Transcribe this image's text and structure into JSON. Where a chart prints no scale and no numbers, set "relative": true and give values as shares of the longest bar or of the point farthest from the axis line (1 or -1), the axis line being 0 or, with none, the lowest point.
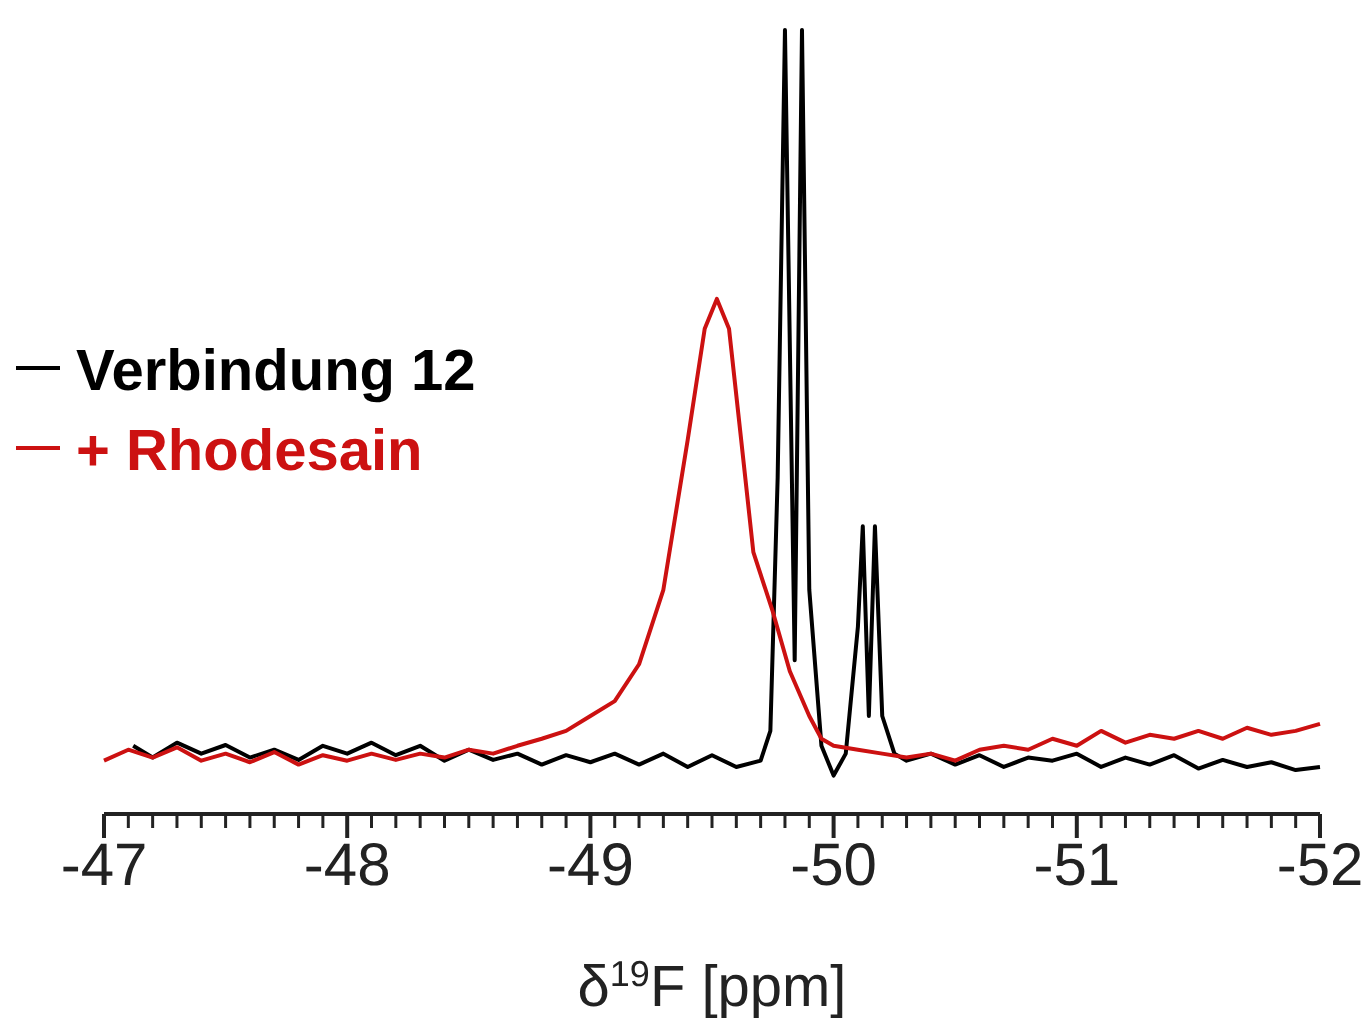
{
  "chart_data": {
    "type": "line",
    "relative": true,
    "xlabel": "δ$^{19}$F [ppm]",
    "legend": "left",
    "line_style": "solid",
    "xlim": [
      -47,
      -52
    ],
    "xticks": [
      -47,
      {
        "value": -47.1,
        "label": null
      },
      {
        "value": -47.2,
        "label": null
      },
      {
        "value": -47.3,
        "label": null
      },
      {
        "value": -47.4,
        "label": null
      },
      {
        "value": -47.5,
        "label": null
      },
      {
        "value": -47.6,
        "label": null
      },
      {
        "value": -47.7,
        "label": null
      },
      {
        "value": -47.8,
        "label": null
      },
      {
        "value": -47.9,
        "label": null
      },
      -48,
      {
        "value": -48.1,
        "label": null
      },
      {
        "value": -48.2,
        "label": null
      },
      {
        "value": -48.3,
        "label": null
      },
      {
        "value": -48.4,
        "label": null
      },
      {
        "value": -48.5,
        "label": null
      },
      {
        "value": -48.6,
        "label": null
      },
      {
        "value": -48.7,
        "label": null
      },
      {
        "value": -48.8,
        "label": null
      },
      {
        "value": -48.9,
        "label": null
      },
      -49,
      {
        "value": -49.1,
        "label": null
      },
      {
        "value": -49.2,
        "label": null
      },
      {
        "value": -49.3,
        "label": null
      },
      {
        "value": -49.4,
        "label": null
      },
      {
        "value": -49.5,
        "label": null
      },
      {
        "value": -49.6,
        "label": null
      },
      {
        "value": -49.7,
        "label": null
      },
      {
        "value": -49.8,
        "label": null
      },
      {
        "value": -49.9,
        "label": null
      },
      -50,
      {
        "value": -50.1,
        "label": null
      },
      {
        "value": -50.2,
        "label": null
      },
      {
        "value": -50.3,
        "label": null
      },
      {
        "value": -50.4,
        "label": null
      },
      {
        "value": -50.5,
        "label": null
      },
      {
        "value": -50.6,
        "label": null
      },
      {
        "value": -50.7,
        "label": null
      },
      {
        "value": -50.8,
        "label": null
      },
      {
        "value": -50.9,
        "label": null
      },
      -51,
      {
        "value": -51.1,
        "label": null
      },
      {
        "value": -51.2,
        "label": null
      },
      {
        "value": -51.3,
        "label": null
      },
      {
        "value": -51.4,
        "label": null
      },
      {
        "value": -51.5,
        "label": null
      },
      {
        "value": -51.6,
        "label": null
      },
      {
        "value": -51.7,
        "label": null
      },
      {
        "value": -51.8,
        "label": null
      },
      {
        "value": -51.9,
        "label": null
      },
      -52
    ],
    "series": [
      {
        "name": "Verbindung 12",
        "color": "#000000",
        "x": [
          -47.12,
          -47.2,
          -47.3,
          -47.4,
          -47.5,
          -47.6,
          -47.7,
          -47.8,
          -47.9,
          -48.0,
          -48.1,
          -48.2,
          -48.3,
          -48.4,
          -48.5,
          -48.6,
          -48.7,
          -48.8,
          -48.9,
          -49.0,
          -49.1,
          -49.2,
          -49.3,
          -49.4,
          -49.5,
          -49.6,
          -49.7,
          -49.74,
          -49.77,
          -49.8,
          -49.84,
          -49.87,
          -49.9,
          -49.95,
          -50.0,
          -50.05,
          -50.1,
          -50.12,
          -50.145,
          -50.17,
          -50.2,
          -50.25,
          -50.3,
          -50.4,
          -50.5,
          -50.6,
          -50.7,
          -50.8,
          -50.9,
          -51.0,
          -51.1,
          -51.2,
          -51.3,
          -51.4,
          -51.5,
          -51.6,
          -51.7,
          -51.8,
          -51.9,
          -52.0
        ],
        "values": [
          0.087,
          0.072,
          0.091,
          0.077,
          0.088,
          0.072,
          0.082,
          0.069,
          0.087,
          0.077,
          0.091,
          0.075,
          0.087,
          0.068,
          0.082,
          0.069,
          0.077,
          0.063,
          0.075,
          0.066,
          0.077,
          0.063,
          0.077,
          0.06,
          0.075,
          0.06,
          0.068,
          0.106,
          0.429,
          1,
          0.196,
          1,
          0.286,
          0.087,
          0.049,
          0.077,
          0.239,
          0.367,
          0.125,
          0.367,
          0.125,
          0.077,
          0.068,
          0.077,
          0.063,
          0.075,
          0.06,
          0.072,
          0.068,
          0.077,
          0.06,
          0.072,
          0.063,
          0.075,
          0.058,
          0.069,
          0.06,
          0.066,
          0.056,
          0.06
        ]
      },
      {
        "name": "+ Rhodesain",
        "color": "#cc1111",
        "x": [
          -47.0,
          -47.1,
          -47.2,
          -47.3,
          -47.4,
          -47.5,
          -47.6,
          -47.7,
          -47.8,
          -47.9,
          -48.0,
          -48.1,
          -48.2,
          -48.3,
          -48.4,
          -48.5,
          -48.6,
          -48.7,
          -48.8,
          -48.9,
          -49.0,
          -49.1,
          -49.2,
          -49.3,
          -49.4,
          -49.47,
          -49.52,
          -49.57,
          -49.62,
          -49.67,
          -49.75,
          -49.82,
          -49.9,
          -49.95,
          -50.0,
          -50.1,
          -50.2,
          -50.3,
          -50.4,
          -50.5,
          -50.6,
          -50.7,
          -50.8,
          -50.9,
          -51.0,
          -51.1,
          -51.2,
          -51.3,
          -51.4,
          -51.5,
          -51.6,
          -51.7,
          -51.8,
          -51.9,
          -52.0
        ],
        "values": [
          0.068,
          0.082,
          0.072,
          0.085,
          0.068,
          0.077,
          0.066,
          0.079,
          0.063,
          0.075,
          0.068,
          0.077,
          0.069,
          0.077,
          0.072,
          0.082,
          0.077,
          0.087,
          0.096,
          0.106,
          0.125,
          0.144,
          0.191,
          0.286,
          0.477,
          0.619,
          0.657,
          0.619,
          0.477,
          0.334,
          0.258,
          0.182,
          0.125,
          0.096,
          0.087,
          0.082,
          0.077,
          0.072,
          0.077,
          0.068,
          0.082,
          0.087,
          0.082,
          0.096,
          0.087,
          0.106,
          0.091,
          0.101,
          0.096,
          0.106,
          0.096,
          0.11,
          0.101,
          0.106,
          0.115
        ]
      }
    ]
  }
}
